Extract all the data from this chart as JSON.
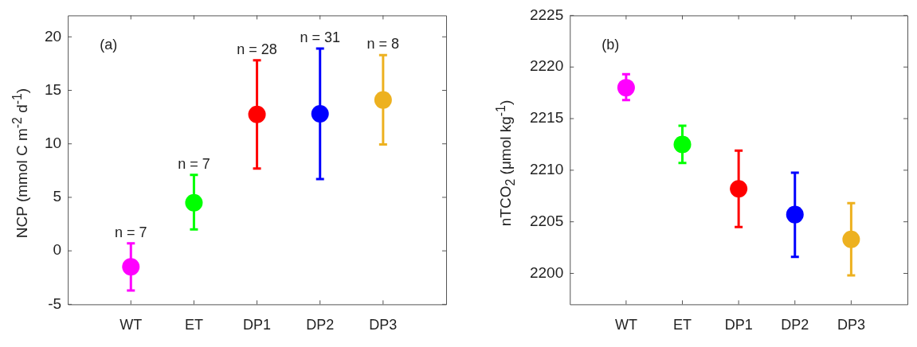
{
  "chart_data": [
    {
      "type": "scatter",
      "categories": [
        "WT",
        "ET",
        "DP1",
        "DP2",
        "DP3"
      ],
      "values": [
        -1.5,
        4.5,
        12.75,
        12.8,
        14.1
      ],
      "colors": [
        "#ff00ff",
        "#00ff00",
        "#ff0000",
        "#0000ff",
        "#edb120"
      ],
      "errors": [
        [
          -3.7,
          0.7
        ],
        [
          2.0,
          7.1
        ],
        [
          7.7,
          17.8
        ],
        [
          6.7,
          18.9
        ],
        [
          9.95,
          18.3
        ]
      ],
      "ylabel": "NCP (mmol C m$^{-2}$ d$^{-1}$)",
      "ylim": [
        -5,
        22
      ],
      "yticks": [
        -5,
        0,
        5,
        10,
        15,
        20
      ],
      "marker": "circle",
      "annotations": [
        "(a)",
        {
          "text": "n = 7",
          "x": "WT",
          "y": 0.7
        },
        {
          "text": "n = 7",
          "x": "ET",
          "y": 7.1
        },
        {
          "text": "n = 28",
          "x": "DP1",
          "y": 17.8
        },
        {
          "text": "n = 31",
          "x": "DP2",
          "y": 18.9
        },
        {
          "text": "n = 8",
          "x": "DP3",
          "y": 18.3
        }
      ]
    },
    {
      "type": "scatter",
      "categories": [
        "WT",
        "ET",
        "DP1",
        "DP2",
        "DP3"
      ],
      "values": [
        2218.0,
        2212.5,
        2208.2,
        2205.7,
        2203.3
      ],
      "colors": [
        "#ff00ff",
        "#00ff00",
        "#ff0000",
        "#0000ff",
        "#edb120"
      ],
      "errors": [
        [
          2216.8,
          2219.3
        ],
        [
          2210.7,
          2214.3
        ],
        [
          2204.5,
          2211.9
        ],
        [
          2201.6,
          2209.75
        ],
        [
          2199.8,
          2206.8
        ]
      ],
      "ylabel": "nTCO$_{2}$ (μmol kg$^{-1}$)",
      "ylim": [
        2197,
        2225
      ],
      "yticks": [
        2200,
        2205,
        2210,
        2215,
        2220,
        2225
      ],
      "marker": "circle",
      "annotations": [
        "(b)"
      ]
    }
  ]
}
